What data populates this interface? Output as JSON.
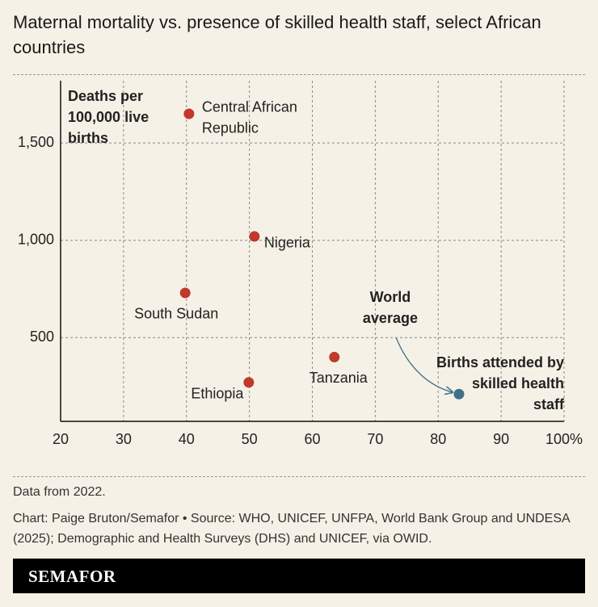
{
  "chart_data": {
    "type": "scatter",
    "title": "Maternal mortality vs. presence of skilled health staff, select African countries",
    "ylabel": [
      "Deaths per",
      "100,000 live",
      "births"
    ],
    "xlabel": [
      "Births attended by",
      "skilled health",
      "staff"
    ],
    "labels": [
      [
        "Central African",
        "Republic"
      ],
      [
        "Nigeria"
      ],
      [
        "South Sudan"
      ],
      [
        "Tanzania"
      ],
      [
        "Ethiopia"
      ],
      [
        "World",
        "average"
      ]
    ],
    "x": [
      40.4,
      50.8,
      39.8,
      63.5,
      49.9,
      83.3
    ],
    "values": [
      1650,
      1020,
      730,
      400,
      270,
      210
    ],
    "colors": [
      "#c0392b",
      "#c0392b",
      "#c0392b",
      "#c0392b",
      "#c0392b",
      "#3f7089"
    ],
    "xlim": [
      20,
      100
    ],
    "ylim": [
      70,
      1820
    ],
    "xticks": [
      20,
      30,
      40,
      50,
      60,
      70,
      80,
      90,
      {
        "value": 100,
        "label": "100%"
      }
    ],
    "yticks": [
      {
        "value": 500,
        "label": "500"
      },
      {
        "value": 1000,
        "label": "1,000"
      },
      {
        "value": 1500,
        "label": "1,500"
      }
    ],
    "grid": true,
    "note": "Data from 2022.",
    "source": "Chart: Paige Bruton/Semafor • Source: WHO, UNICEF, UNFPA, World Bank Group and UNDESA (2025); Demographic and Health Surveys (DHS) and UNICEF, via OWID.",
    "brand": "SEMAFOR"
  }
}
